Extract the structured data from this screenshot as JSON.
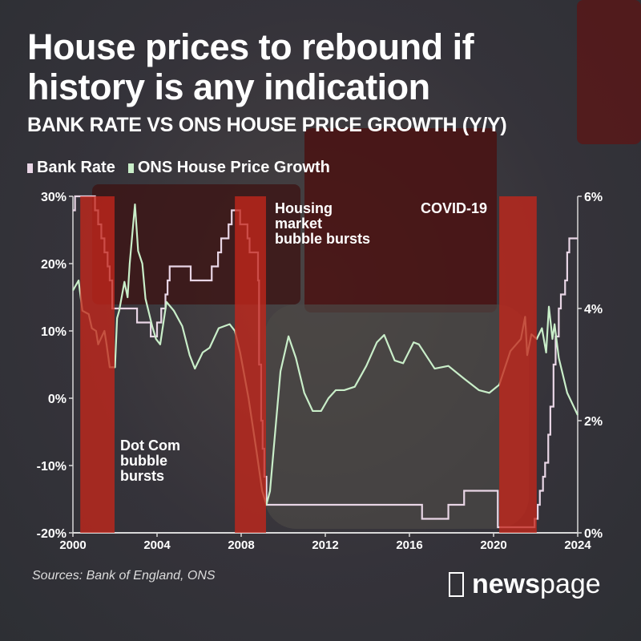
{
  "title_line1": "House prices to rebound if",
  "title_line2": "history is any indication",
  "subtitle": "BANK RATE VS ONS HOUSE PRICE GROWTH (Y/Y)",
  "sources": "Sources: Bank of England, ONS",
  "logo": {
    "bold": "news",
    "light": "page"
  },
  "colors": {
    "bank_rate": "#e9d6e6",
    "hpg": "#c9eec9",
    "band": "#c4261b"
  },
  "chart_data": {
    "type": "line",
    "x_ticks": [
      "2000",
      "2004",
      "2008",
      "2012",
      "2016",
      "2020",
      "2024"
    ],
    "xlim": [
      2000,
      2024
    ],
    "left_axis": {
      "ticks": [
        "30%",
        "20%",
        "10%",
        "0%",
        "-10%",
        "-20%"
      ],
      "ylim": [
        -20,
        30
      ],
      "series": "ONS House Price Growth"
    },
    "right_axis": {
      "ticks": [
        "6%",
        "4%",
        "2%",
        "0%"
      ],
      "ylim": [
        0,
        6
      ],
      "series": "Bank Rate"
    },
    "grid": false,
    "legend": "top-left",
    "series": [
      {
        "name": "Bank Rate",
        "axis": "right",
        "step": true,
        "points": [
          [
            2000.0,
            5.75
          ],
          [
            2000.1,
            6
          ],
          [
            2001.05,
            5.75
          ],
          [
            2001.2,
            5.5
          ],
          [
            2001.35,
            5.25
          ],
          [
            2001.5,
            5
          ],
          [
            2001.65,
            4.75
          ],
          [
            2001.75,
            4.5
          ],
          [
            2001.87,
            4
          ],
          [
            2003.05,
            3.75
          ],
          [
            2003.7,
            3.5
          ],
          [
            2004.0,
            3.75
          ],
          [
            2004.2,
            4
          ],
          [
            2004.4,
            4.25
          ],
          [
            2004.5,
            4.5
          ],
          [
            2004.6,
            4.75
          ],
          [
            2005.6,
            4.5
          ],
          [
            2006.6,
            4.75
          ],
          [
            2006.9,
            5
          ],
          [
            2007.05,
            5.25
          ],
          [
            2007.4,
            5.5
          ],
          [
            2007.55,
            5.75
          ],
          [
            2007.95,
            5.5
          ],
          [
            2008.3,
            5.25
          ],
          [
            2008.4,
            5
          ],
          [
            2008.8,
            4.5
          ],
          [
            2008.85,
            3
          ],
          [
            2008.95,
            2
          ],
          [
            2009.02,
            1.5
          ],
          [
            2009.1,
            1
          ],
          [
            2009.2,
            0.5
          ],
          [
            2016.6,
            0.25
          ],
          [
            2017.85,
            0.5
          ],
          [
            2018.6,
            0.75
          ],
          [
            2020.2,
            0.1
          ],
          [
            2021.95,
            0.25
          ],
          [
            2022.1,
            0.5
          ],
          [
            2022.2,
            0.75
          ],
          [
            2022.35,
            1
          ],
          [
            2022.45,
            1.25
          ],
          [
            2022.6,
            1.75
          ],
          [
            2022.7,
            2.25
          ],
          [
            2022.85,
            3
          ],
          [
            2022.95,
            3.5
          ],
          [
            2023.1,
            4
          ],
          [
            2023.2,
            4.25
          ],
          [
            2023.4,
            4.5
          ],
          [
            2023.5,
            5
          ],
          [
            2023.6,
            5.25
          ],
          [
            2024.0,
            5.25
          ]
        ]
      },
      {
        "name": "ONS House Price Growth",
        "axis": "left",
        "points": [
          [
            2000.0,
            16
          ],
          [
            2000.27,
            17.5
          ],
          [
            2000.45,
            13
          ],
          [
            2000.75,
            12.5
          ],
          [
            2000.9,
            10.4
          ],
          [
            2001.1,
            10
          ],
          [
            2001.2,
            8
          ],
          [
            2001.5,
            10
          ],
          [
            2001.6,
            8
          ],
          [
            2001.75,
            4.6
          ],
          [
            2002.0,
            4.6
          ],
          [
            2002.1,
            11.9
          ],
          [
            2002.2,
            13
          ],
          [
            2002.45,
            17.3
          ],
          [
            2002.6,
            15
          ],
          [
            2002.7,
            20
          ],
          [
            2002.95,
            28.8
          ],
          [
            2003.1,
            21.9
          ],
          [
            2003.3,
            20
          ],
          [
            2003.45,
            14.8
          ],
          [
            2003.77,
            10.7
          ],
          [
            2003.95,
            8.8
          ],
          [
            2004.15,
            8
          ],
          [
            2004.45,
            14.3
          ],
          [
            2004.8,
            13
          ],
          [
            2005.2,
            10.7
          ],
          [
            2005.55,
            6.4
          ],
          [
            2005.8,
            4.4
          ],
          [
            2006.17,
            6.8
          ],
          [
            2006.5,
            7.5
          ],
          [
            2006.93,
            10.4
          ],
          [
            2007.45,
            11
          ],
          [
            2007.7,
            10
          ],
          [
            2007.95,
            6.8
          ],
          [
            2008.35,
            0
          ],
          [
            2008.73,
            -7.9
          ],
          [
            2009.0,
            -13.8
          ],
          [
            2009.2,
            -15.8
          ],
          [
            2009.37,
            -13.8
          ],
          [
            2009.87,
            4
          ],
          [
            2010.25,
            9.2
          ],
          [
            2010.6,
            6
          ],
          [
            2011.0,
            0.8
          ],
          [
            2011.4,
            -1.9
          ],
          [
            2011.8,
            -1.9
          ],
          [
            2012.15,
            0
          ],
          [
            2012.5,
            1.2
          ],
          [
            2012.9,
            1.2
          ],
          [
            2013.4,
            1.7
          ],
          [
            2013.95,
            4.8
          ],
          [
            2014.45,
            8.3
          ],
          [
            2014.8,
            9.4
          ],
          [
            2015.3,
            5.6
          ],
          [
            2015.7,
            5.2
          ],
          [
            2016.2,
            8.3
          ],
          [
            2016.45,
            8
          ],
          [
            2017.2,
            4.4
          ],
          [
            2017.85,
            4.8
          ],
          [
            2018.6,
            2.9
          ],
          [
            2019.3,
            1.2
          ],
          [
            2019.8,
            0.8
          ],
          [
            2020.27,
            2
          ],
          [
            2020.8,
            7
          ],
          [
            2021.3,
            8.8
          ],
          [
            2021.5,
            12.1
          ],
          [
            2021.6,
            6.4
          ],
          [
            2021.8,
            9.5
          ],
          [
            2022.05,
            8.8
          ],
          [
            2022.3,
            10.4
          ],
          [
            2022.5,
            6.8
          ],
          [
            2022.63,
            13.6
          ],
          [
            2022.8,
            8.8
          ],
          [
            2022.9,
            11
          ],
          [
            2023.1,
            6
          ],
          [
            2023.5,
            0.8
          ],
          [
            2024.0,
            -2.5
          ]
        ]
      }
    ],
    "annotations": [
      {
        "label": "Dot Com bubble bursts",
        "band": [
          2000.35,
          2001.98
        ]
      },
      {
        "label": "Housing market bubble bursts",
        "band": [
          2007.7,
          2009.18
        ]
      },
      {
        "label": "COVID-19",
        "band": [
          2020.27,
          2022.05
        ]
      }
    ]
  }
}
